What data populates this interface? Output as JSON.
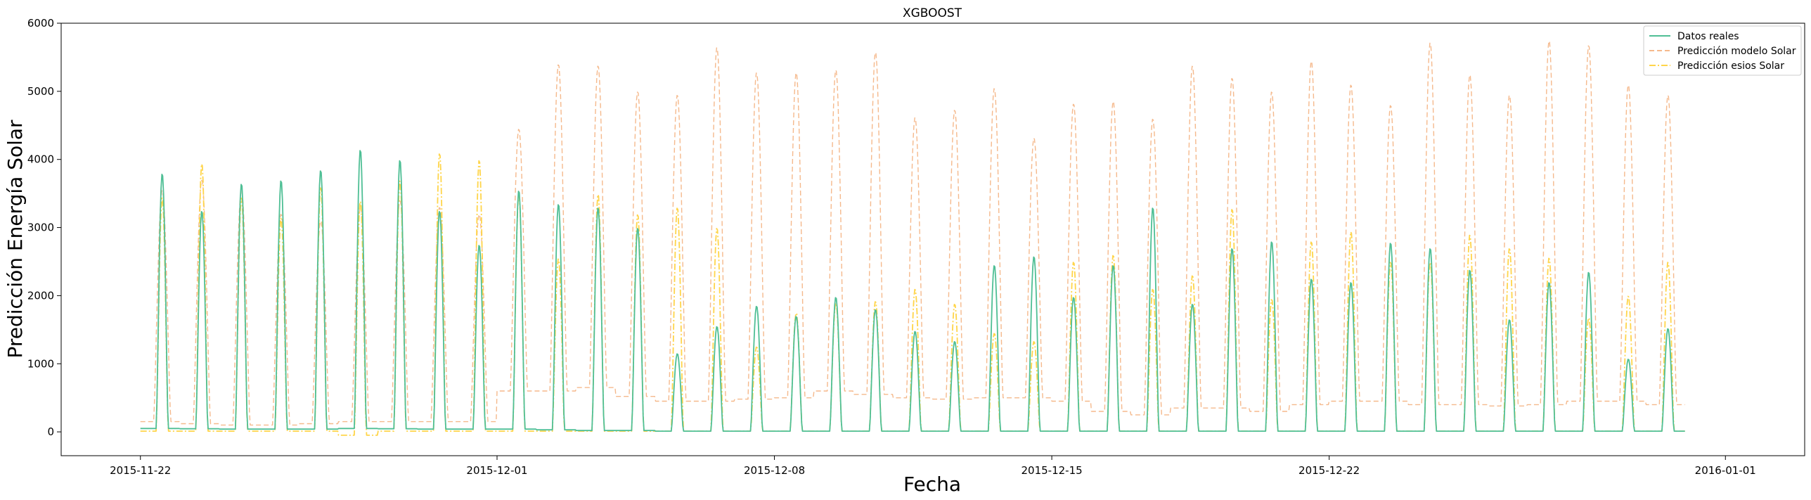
{
  "chart_data": {
    "type": "line",
    "title": "XGBOOST",
    "xlabel": "Fecha",
    "ylabel": "Predicción Energía Solar",
    "x_start": "2015-11-22",
    "x_end": "2015-12-30",
    "xlim": [
      "2015-11-20",
      "2016-01-03"
    ],
    "ylim": [
      -350,
      6000
    ],
    "yticks": [
      0,
      1000,
      2000,
      3000,
      4000,
      5000,
      6000
    ],
    "xticks": [
      "2015-11-22",
      "2015-12-01",
      "2015-12-08",
      "2015-12-15",
      "2015-12-22",
      "2016-01-01"
    ],
    "legend_position": "top-right",
    "grid": false,
    "series": [
      {
        "name": "Datos reales",
        "color": "#4fbf95",
        "style": "solid",
        "daily_peaks": [
          3800,
          3250,
          3650,
          3700,
          3850,
          4150,
          4000,
          3250,
          2750,
          3550,
          3350,
          3300,
          3000,
          1150,
          1550,
          1850,
          1700,
          1980,
          1800,
          1480,
          1330,
          2450,
          2580,
          1980,
          2450,
          3300,
          1880,
          2700,
          2800,
          2250,
          2200,
          2780,
          2700,
          2380,
          1650,
          2200,
          2350,
          1070,
          1520
        ],
        "night_values": [
          50,
          45,
          40,
          40,
          40,
          50,
          45,
          40,
          40,
          40,
          30,
          20,
          20,
          10,
          10,
          10,
          10,
          10,
          10,
          10,
          10,
          10,
          10,
          10,
          10,
          10,
          10,
          10,
          10,
          10,
          10,
          10,
          10,
          10,
          10,
          10,
          10,
          10,
          10
        ]
      },
      {
        "name": "Predicción modelo Solar",
        "color": "#f5b98c",
        "style": "dashed",
        "daily_peaks": [
          3550,
          3700,
          3550,
          3200,
          3100,
          3300,
          3400,
          3300,
          3200,
          4450,
          5400,
          5380,
          5000,
          4950,
          5650,
          5280,
          5280,
          5320,
          5580,
          4620,
          4730,
          5050,
          4320,
          4820,
          4860,
          4600,
          5380,
          5200,
          5000,
          5450,
          5100,
          4800,
          5720,
          5250,
          4950,
          5750,
          5680,
          5100,
          4950
        ],
        "night_values": [
          150,
          120,
          100,
          100,
          120,
          150,
          150,
          150,
          150,
          600,
          600,
          650,
          520,
          450,
          450,
          480,
          500,
          600,
          550,
          500,
          480,
          500,
          500,
          450,
          300,
          250,
          350,
          350,
          300,
          400,
          450,
          450,
          400,
          400,
          380,
          400,
          450,
          450,
          400
        ]
      },
      {
        "name": "Predicción esios Solar",
        "color": "#ffd54a",
        "style": "dashdot",
        "daily_peaks": [
          3450,
          3950,
          3450,
          3150,
          3600,
          3400,
          3700,
          4100,
          4000,
          3500,
          2550,
          3500,
          3200,
          3300,
          3000,
          1250,
          1750,
          1900,
          1920,
          2100,
          1880,
          1450,
          1330,
          2500,
          2600,
          2100,
          2300,
          3280,
          1950,
          2800,
          2950,
          2500,
          2500,
          2900,
          2700,
          2560,
          1680,
          2000,
          2500
        ],
        "night_values": [
          10,
          10,
          10,
          10,
          10,
          -50,
          10,
          10,
          10,
          10,
          10,
          10,
          10,
          10,
          10,
          10,
          10,
          10,
          10,
          10,
          10,
          10,
          10,
          10,
          10,
          10,
          10,
          10,
          10,
          10,
          10,
          10,
          10,
          10,
          10,
          10,
          10,
          10,
          10
        ]
      }
    ]
  }
}
